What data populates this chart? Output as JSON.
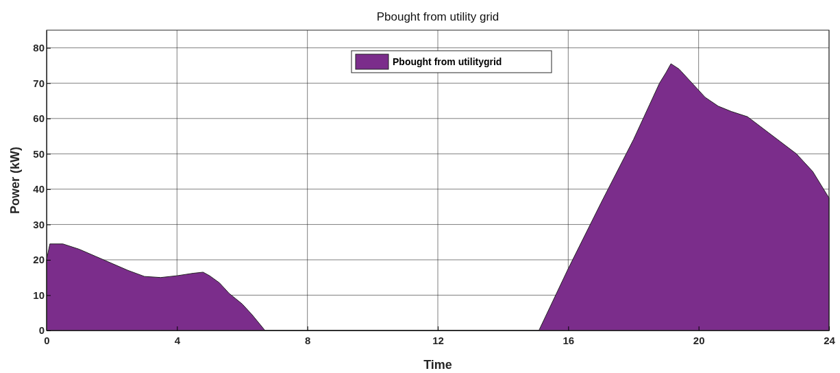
{
  "chart_data": {
    "type": "area",
    "title": "Pbought from utility grid",
    "xlabel": "Time",
    "ylabel": "Power (kW)",
    "x": [
      0,
      0.1,
      0.5,
      1,
      1.5,
      2,
      2.5,
      3,
      3.5,
      4,
      4.5,
      4.8,
      5,
      5.3,
      5.6,
      6,
      6.3,
      6.7,
      8,
      12,
      15.1,
      16,
      17,
      18,
      18.5,
      18.8,
      19,
      19.15,
      19.4,
      19.8,
      20.2,
      20.6,
      21,
      21.5,
      22,
      22.5,
      23,
      23.5,
      24
    ],
    "series": [
      {
        "name": "Pbought from utilitygrid",
        "color": "#7b2d8b",
        "values": [
          20,
          24.5,
          24.5,
          23,
          21,
          19,
          17,
          15.3,
          15,
          15.5,
          16.2,
          16.5,
          15.5,
          13.5,
          10.5,
          7.5,
          4.5,
          0,
          0,
          0,
          0,
          17.5,
          36,
          54,
          64,
          70,
          73,
          75.5,
          74,
          70,
          66,
          63.5,
          62,
          60.5,
          57,
          53.5,
          50,
          45,
          37.5
        ]
      }
    ],
    "xlim": [
      0,
      24
    ],
    "xticks": [
      0,
      4,
      8,
      12,
      16,
      20,
      24
    ],
    "ylim": [
      0,
      85
    ],
    "yticks": [
      0,
      10,
      20,
      30,
      40,
      50,
      60,
      70,
      80
    ],
    "grid": true,
    "legend": "top"
  }
}
